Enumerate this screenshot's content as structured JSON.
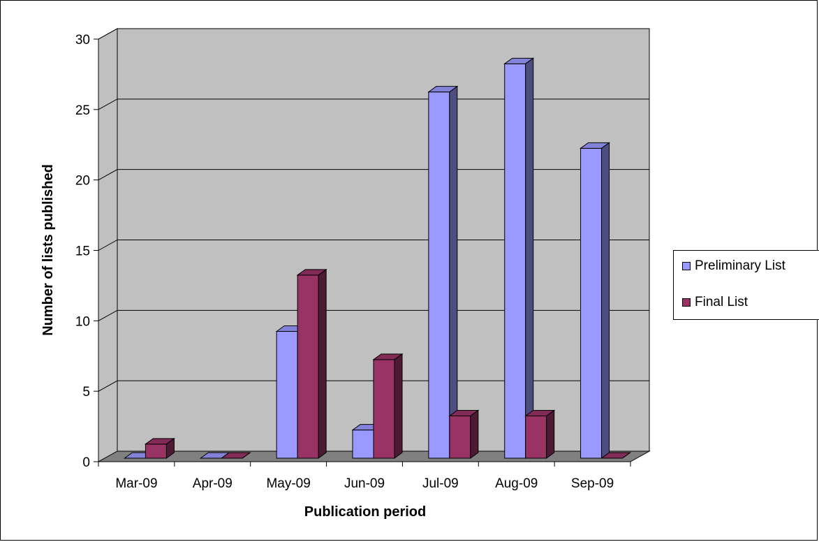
{
  "chart_data": {
    "type": "bar",
    "style": "3d-clustered-column",
    "categories": [
      "Mar-09",
      "Apr-09",
      "May-09",
      "Jun-09",
      "Jul-09",
      "Aug-09",
      "Sep-09"
    ],
    "series": [
      {
        "name": "Preliminary List",
        "color": "#9999ff",
        "values": [
          0,
          0,
          9,
          2,
          26,
          28,
          22
        ]
      },
      {
        "name": "Final List",
        "color": "#993366",
        "values": [
          1,
          0,
          13,
          7,
          3,
          3,
          0
        ]
      }
    ],
    "xlabel": "Publication period",
    "ylabel": "Number of lists published",
    "ylim": [
      0,
      30
    ],
    "yticks": [
      0,
      5,
      10,
      15,
      20,
      25,
      30
    ],
    "grid": true,
    "legend_position": "right",
    "wall_color": "#c0c0c0",
    "floor_color": "#808080"
  }
}
